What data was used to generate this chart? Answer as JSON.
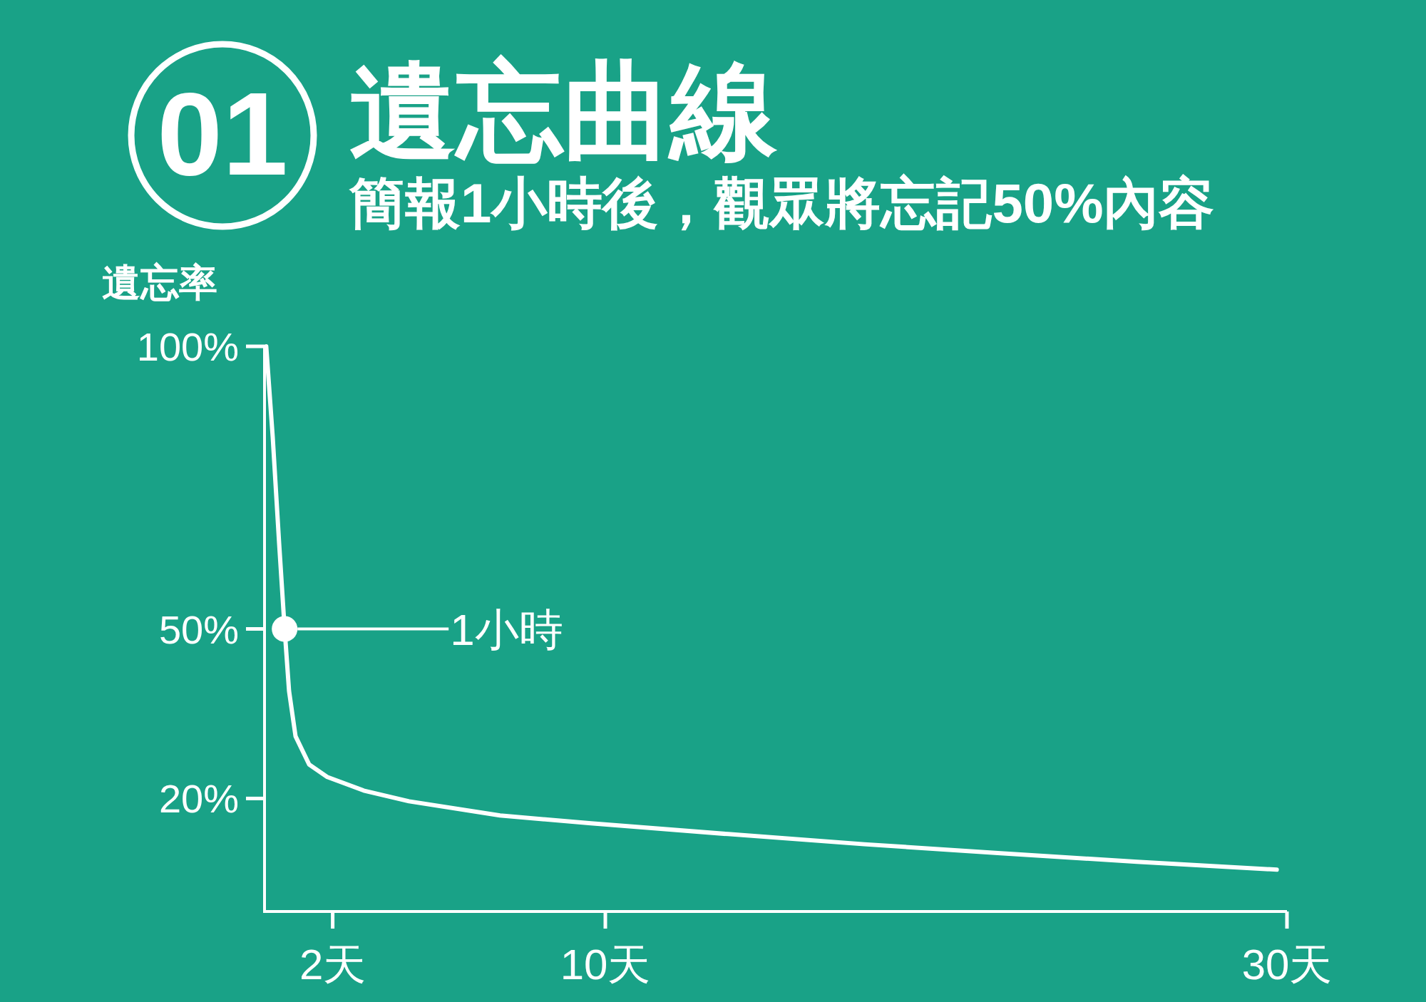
{
  "chart_data": {
    "type": "line",
    "title": "遺忘曲線",
    "subtitle": "簡報1小時後，觀眾將忘記50%內容",
    "ylabel": "遺忘率",
    "series": [
      {
        "color": "#ffffff",
        "x": [
          0.05,
          0.24,
          0.43,
          0.59,
          0.72,
          0.91,
          1.31,
          1.84,
          2.91,
          4.24,
          6.91,
          9.58,
          13.6,
          17.6,
          21.6,
          25.6,
          29.7
        ],
        "values": [
          100,
          84,
          65,
          50,
          39,
          31,
          26,
          23.8,
          21.4,
          19.5,
          17,
          15.6,
          13.7,
          11.9,
          10.3,
          8.8,
          7.4
        ]
      },
      {
        "type": "scatter",
        "color": "#ffffff",
        "x": [
          0.59
        ],
        "values": [
          50
        ]
      }
    ],
    "xlim": [
      0,
      30
    ],
    "ylim": [
      0,
      100
    ],
    "xticks": [
      {
        "value": 2,
        "label": "2天"
      },
      {
        "value": 10,
        "label": "10天"
      },
      {
        "value": 30,
        "label": "30天"
      }
    ],
    "yticks": [
      {
        "value": 100,
        "label": "100%"
      },
      {
        "value": 50,
        "label": "50%"
      },
      {
        "value": 20,
        "label": "20%"
      }
    ],
    "annotations": [
      "01",
      "1小時"
    ],
    "grid": false
  }
}
